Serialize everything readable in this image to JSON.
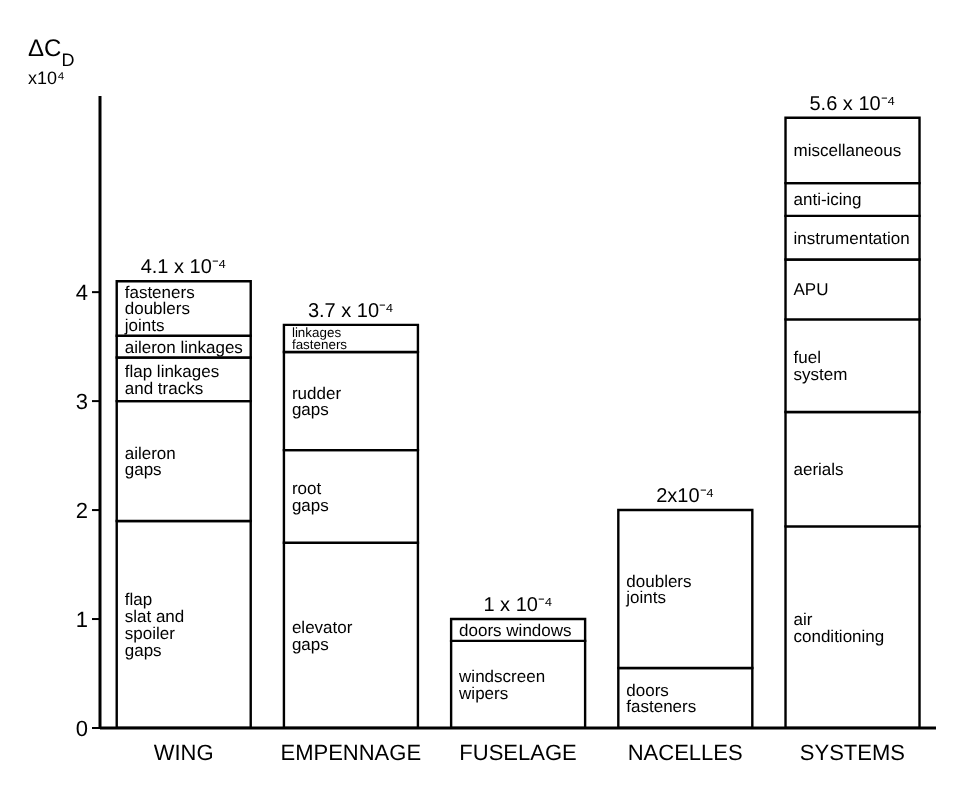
{
  "chart_data": {
    "type": "bar",
    "stacked": true,
    "ylabel": "ΔC$_{D}$",
    "categories": [
      "WING",
      "EMPENNAGE",
      "FUSELAGE",
      "NACELLES",
      "SYSTEMS"
    ],
    "series": [
      {
        "name": "flap\nslat and\nspoiler\ngaps",
        "color": "#ffffff",
        "values": [
          1.9,
          null,
          null,
          null,
          null
        ]
      },
      {
        "name": "aileron\ngaps",
        "color": "#ffffff",
        "values": [
          1.1,
          null,
          null,
          null,
          null
        ]
      },
      {
        "name": "flap linkages\nand tracks",
        "color": "#ffffff",
        "values": [
          0.4,
          null,
          null,
          null,
          null
        ]
      },
      {
        "name": "aileron linkages",
        "color": "#ffffff",
        "values": [
          0.2,
          null,
          null,
          null,
          null
        ]
      },
      {
        "name": "fasteners\ndoublers\njoints",
        "color": "#ffffff",
        "values": [
          0.5,
          null,
          null,
          null,
          null
        ]
      },
      {
        "name": "elevator\ngaps",
        "color": "#ffffff",
        "values": [
          null,
          1.7,
          null,
          null,
          null
        ]
      },
      {
        "name": "root\ngaps",
        "color": "#ffffff",
        "values": [
          null,
          0.85,
          null,
          null,
          null
        ]
      },
      {
        "name": "rudder\ngaps",
        "color": "#ffffff",
        "values": [
          null,
          0.9,
          null,
          null,
          null
        ]
      },
      {
        "name": "linkages\nfasteners",
        "color": "#ffffff",
        "values": [
          null,
          0.25,
          null,
          null,
          null
        ]
      },
      {
        "name": "windscreen\nwipers",
        "color": "#ffffff",
        "values": [
          null,
          null,
          0.8,
          null,
          null
        ]
      },
      {
        "name": "doors windows",
        "color": "#ffffff",
        "values": [
          null,
          null,
          0.2,
          null,
          null
        ]
      },
      {
        "name": "doors\nfasteners",
        "color": "#ffffff",
        "values": [
          null,
          null,
          null,
          0.55,
          null
        ]
      },
      {
        "name": "doublers\njoints",
        "color": "#ffffff",
        "values": [
          null,
          null,
          null,
          1.45,
          null
        ]
      },
      {
        "name": "air\nconditioning",
        "color": "#ffffff",
        "values": [
          null,
          null,
          null,
          null,
          1.85
        ]
      },
      {
        "name": "aerials",
        "color": "#ffffff",
        "values": [
          null,
          null,
          null,
          null,
          1.05
        ]
      },
      {
        "name": "fuel\nsystem",
        "color": "#ffffff",
        "values": [
          null,
          null,
          null,
          null,
          0.85
        ]
      },
      {
        "name": "APU",
        "color": "#ffffff",
        "values": [
          null,
          null,
          null,
          null,
          0.55
        ]
      },
      {
        "name": "instrumentation",
        "color": "#ffffff",
        "values": [
          null,
          null,
          null,
          null,
          0.4
        ]
      },
      {
        "name": "anti-icing",
        "color": "#ffffff",
        "values": [
          null,
          null,
          null,
          null,
          0.3
        ]
      },
      {
        "name": "miscellaneous",
        "color": "#ffffff",
        "values": [
          null,
          null,
          null,
          null,
          0.6
        ]
      }
    ],
    "ylim": [
      0,
      5.8
    ],
    "yticks": [
      0,
      1,
      2,
      3,
      4
    ],
    "grid": false,
    "legend": false,
    "annotations": [
      "x10⁴",
      {
        "text": "4.1 x 10⁻⁴",
        "x": "WING",
        "y": 4.1
      },
      {
        "text": "3.7 x 10⁻⁴",
        "x": "EMPENNAGE",
        "y": 3.7
      },
      {
        "text": "1 x 10⁻⁴",
        "x": "FUSELAGE",
        "y": 1
      },
      {
        "text": "2x10⁻⁴",
        "x": "NACELLES",
        "y": 2
      },
      {
        "text": "5.6 x 10⁻⁴",
        "x": "SYSTEMS",
        "y": 5.6
      }
    ]
  }
}
